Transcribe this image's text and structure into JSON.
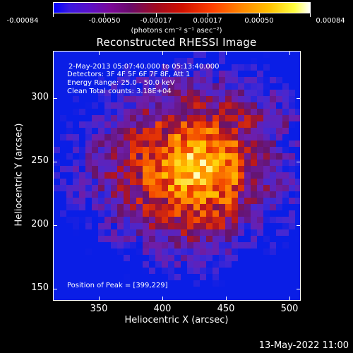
{
  "colorbar": {
    "labels": [
      "-0.00084",
      "-0.00050",
      "-0.00017",
      "0.00017",
      "0.00050",
      "0.00084"
    ],
    "units": "(photons cm⁻² s⁻¹ asec⁻²)"
  },
  "title": "Reconstructed RHESSI Image",
  "annotations": {
    "time": "2-May-2013 05:07:40.000 to 05:13:40.000",
    "detectors": "Detectors: 3F 4F 5F 6F 7F 8F, Att 1",
    "energy": "Energy Range: 25.0 - 50.0 keV",
    "clean": "Clean    Total counts: 3.18E+04",
    "peak": "Position of Peak = [399,229]"
  },
  "axes": {
    "x_title": "Heliocentric X (arcsec)",
    "y_title": "Heliocentric Y (arcsec)",
    "x_ticks": [
      "350",
      "400",
      "450",
      "500"
    ],
    "y_ticks": [
      "300",
      "250",
      "200",
      "150"
    ]
  },
  "footer": "13-May-2022 11:00",
  "colors": {
    "background": "#000000",
    "foreground": "#ffffff"
  }
}
